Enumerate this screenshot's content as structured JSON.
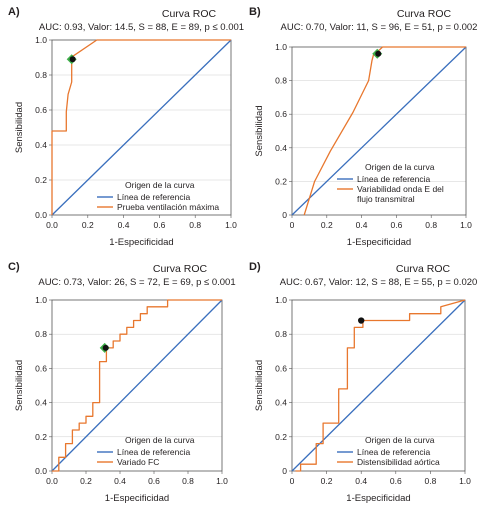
{
  "colors": {
    "reference": "#3a6fbd",
    "curve": "#e8772e",
    "cutoff_dark": "#111111",
    "cutoff_green": "#3fae49",
    "frame": "#555555"
  },
  "chart_data": [
    {
      "type": "line",
      "panel_label": "A)",
      "title": "Curva ROC",
      "subtitle": "AUC: 0.93, Valor: 14.5, S = 88, E = 89, p ≤ 0.001",
      "xlabel": "1-Especificidad",
      "ylabel": "Sensibilidad",
      "xlim": [
        0,
        1
      ],
      "ylim": [
        0,
        1
      ],
      "xticks": [
        "0.0",
        "0.2",
        "0.4",
        "0.6",
        "0.8",
        "1.0"
      ],
      "yticks": [
        "0.0",
        "0.2",
        "0.4",
        "0.6",
        "0.8",
        "1.0"
      ],
      "legend_title": "Origen de la curva",
      "legend_position": "bottom-right",
      "series": [
        {
          "name": "Línea de referencia",
          "color": "#3a6fbd",
          "x": [
            0,
            1
          ],
          "y": [
            0,
            1
          ]
        },
        {
          "name": "Prueba ventilación máxima",
          "color": "#e8772e",
          "x": [
            0,
            0,
            0.08,
            0.08,
            0.09,
            0.11,
            0.11,
            0.12,
            0.25,
            1.0
          ],
          "y": [
            0,
            0.48,
            0.48,
            0.59,
            0.69,
            0.76,
            0.91,
            0.91,
            1.0,
            1.0
          ]
        }
      ],
      "markers": [
        {
          "x": 0.11,
          "y": 0.89,
          "colors": [
            "#3fae49",
            "#111111"
          ]
        }
      ]
    },
    {
      "type": "line",
      "panel_label": "B)",
      "title": "Curva ROC",
      "subtitle": "AUC: 0.70, Valor: 11, S = 96, E = 51, p = 0.002",
      "xlabel": "1-Especificidad",
      "ylabel": "Sensibilidad",
      "xlim": [
        0,
        1
      ],
      "ylim": [
        0,
        1
      ],
      "xticks": [
        "0",
        "0.2",
        "0.4",
        "0.6",
        "0.8",
        "1.0"
      ],
      "yticks": [
        "0",
        "0.2",
        "0.4",
        "0.6",
        "0.8",
        "1.0"
      ],
      "legend_title": "Origen de la curva",
      "legend_position": "bottom-right",
      "series": [
        {
          "name": "Línea de referencia",
          "color": "#3a6fbd",
          "x": [
            0,
            1
          ],
          "y": [
            0,
            1
          ]
        },
        {
          "name": "Variabilidad onda E del flujo transmitral",
          "color": "#e8772e",
          "x": [
            0.07,
            0.13,
            0.14,
            0.22,
            0.35,
            0.44,
            0.46,
            0.47,
            0.5,
            0.52,
            1.0
          ],
          "y": [
            0.0,
            0.2,
            0.22,
            0.38,
            0.61,
            0.8,
            0.92,
            0.96,
            0.98,
            1.0,
            1.0
          ]
        }
      ],
      "markers": [
        {
          "x": 0.49,
          "y": 0.96,
          "colors": [
            "#3fae49",
            "#111111"
          ]
        }
      ]
    },
    {
      "type": "line",
      "panel_label": "C)",
      "title": "Curva ROC",
      "subtitle": "AUC: 0.73, Valor: 26, S = 72, E = 69, p ≤ 0.001",
      "xlabel": "1-Especificidad",
      "ylabel": "Sensibilidad",
      "xlim": [
        0,
        1
      ],
      "ylim": [
        0,
        1
      ],
      "xticks": [
        "0.0",
        "0.2",
        "0.4",
        "0.6",
        "0.8",
        "1.0"
      ],
      "yticks": [
        "0.0",
        "0.2",
        "0.4",
        "0.6",
        "0.8",
        "1.0"
      ],
      "legend_title": "Origen de la curva",
      "legend_position": "bottom-right",
      "series": [
        {
          "name": "Línea de referencia",
          "color": "#3a6fbd",
          "x": [
            0,
            1
          ],
          "y": [
            0,
            1
          ]
        },
        {
          "name": "Variado FC",
          "color": "#e8772e",
          "x": [
            0,
            0.04,
            0.04,
            0.08,
            0.08,
            0.12,
            0.12,
            0.16,
            0.16,
            0.2,
            0.2,
            0.24,
            0.24,
            0.28,
            0.28,
            0.32,
            0.32,
            0.36,
            0.36,
            0.4,
            0.4,
            0.44,
            0.44,
            0.48,
            0.48,
            0.52,
            0.52,
            0.56,
            0.56,
            0.64,
            0.64,
            0.68,
            0.68,
            1.0
          ],
          "y": [
            0,
            0,
            0.08,
            0.08,
            0.16,
            0.16,
            0.24,
            0.24,
            0.28,
            0.28,
            0.32,
            0.32,
            0.4,
            0.4,
            0.64,
            0.64,
            0.72,
            0.72,
            0.76,
            0.76,
            0.8,
            0.8,
            0.84,
            0.84,
            0.88,
            0.88,
            0.92,
            0.92,
            0.96,
            0.96,
            0.96,
            0.96,
            1.0,
            1.0
          ]
        }
      ],
      "markers": [
        {
          "x": 0.31,
          "y": 0.72,
          "colors": [
            "#3fae49",
            "#111111"
          ]
        }
      ]
    },
    {
      "type": "line",
      "panel_label": "D)",
      "title": "Curva ROC",
      "subtitle": "AUC: 0.67, Valor: 12, S = 88, E = 55, p = 0.020",
      "xlabel": "1-Especificidad",
      "ylabel": "Sensibilidad",
      "xlim": [
        0,
        1
      ],
      "ylim": [
        0,
        1
      ],
      "xticks": [
        "0",
        "0.2",
        "0.4",
        "0.6",
        "0.8",
        "1.0"
      ],
      "yticks": [
        "0",
        "0.2",
        "0.4",
        "0.6",
        "0.8",
        "1.0"
      ],
      "legend_title": "Origen de la curva",
      "legend_position": "bottom-right",
      "series": [
        {
          "name": "Línea de referencia",
          "color": "#3a6fbd",
          "x": [
            0,
            1
          ],
          "y": [
            0,
            1
          ]
        },
        {
          "name": "Distensibilidad aórtica",
          "color": "#e8772e",
          "x": [
            0.02,
            0.05,
            0.05,
            0.14,
            0.14,
            0.18,
            0.18,
            0.27,
            0.27,
            0.32,
            0.32,
            0.36,
            0.36,
            0.41,
            0.41,
            0.5,
            0.5,
            0.68,
            0.68,
            0.72,
            0.72,
            0.86,
            0.86,
            1.0
          ],
          "y": [
            0.0,
            0.0,
            0.04,
            0.04,
            0.16,
            0.16,
            0.28,
            0.28,
            0.48,
            0.48,
            0.72,
            0.72,
            0.84,
            0.84,
            0.88,
            0.88,
            0.88,
            0.88,
            0.92,
            0.92,
            0.92,
            0.92,
            0.96,
            1.0
          ]
        }
      ],
      "markers": [
        {
          "x": 0.4,
          "y": 0.88,
          "colors": [
            "#111111"
          ]
        }
      ]
    }
  ]
}
